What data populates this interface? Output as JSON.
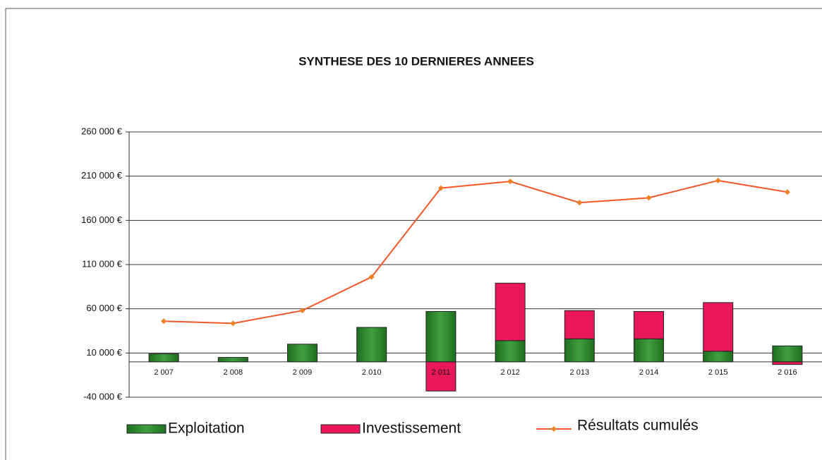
{
  "chart_data": {
    "type": "bar+line",
    "title": "SYNTHESE DES 10 DERNIERES ANNEES",
    "categories": [
      "2 007",
      "2 008",
      "2 009",
      "2 010",
      "2 011",
      "2 012",
      "2 013",
      "2 014",
      "2 015",
      "2 016"
    ],
    "series": [
      {
        "name": "Exploitation",
        "type": "bar",
        "color": "#2f8a2f",
        "values": [
          9000,
          5000,
          20000,
          39000,
          57000,
          24000,
          26000,
          26000,
          12000,
          18000
        ]
      },
      {
        "name": "Investissement",
        "type": "bar",
        "color": "#e8185a",
        "values": [
          0,
          0,
          0,
          0,
          -33000,
          65000,
          32000,
          31000,
          55000,
          -3000
        ]
      },
      {
        "name": "Résultats cumulés",
        "type": "line",
        "color": "#f0582a",
        "values": [
          46000,
          43500,
          58000,
          96000,
          196500,
          204000,
          180000,
          185500,
          205000,
          192000
        ]
      }
    ],
    "ylim": [
      -40000,
      260000
    ],
    "yticks": [
      {
        "value": -40000,
        "label": "-40 000 €"
      },
      {
        "value": 10000,
        "label": "10 000 €"
      },
      {
        "value": 60000,
        "label": "60 000 €"
      },
      {
        "value": 110000,
        "label": "110 000 €"
      },
      {
        "value": 160000,
        "label": "160 000 €"
      },
      {
        "value": 210000,
        "label": "210 000 €"
      },
      {
        "value": 260000,
        "label": "260 000 €"
      }
    ],
    "grid": true,
    "legend": "bottom"
  }
}
